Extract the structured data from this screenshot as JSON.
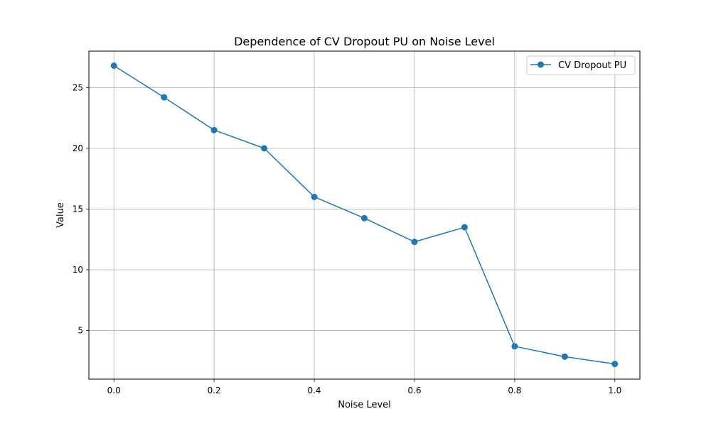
{
  "chart_data": {
    "type": "line",
    "title": "Dependence of CV Dropout PU on Noise Level",
    "xlabel": "Noise Level",
    "ylabel": "Value",
    "xlim": [
      -0.05,
      1.05
    ],
    "ylim": [
      1.0,
      28.0
    ],
    "xticks": [
      0.0,
      0.2,
      0.4,
      0.6,
      0.8,
      1.0
    ],
    "xtick_labels": [
      "0.0",
      "0.2",
      "0.4",
      "0.6",
      "0.8",
      "1.0"
    ],
    "yticks": [
      5,
      10,
      15,
      20,
      25
    ],
    "ytick_labels": [
      "5",
      "10",
      "15",
      "20",
      "25"
    ],
    "grid": true,
    "legend_position": "top-right",
    "x": [
      0.0,
      0.1,
      0.2,
      0.3,
      0.4,
      0.5,
      0.6,
      0.7,
      0.8,
      0.9,
      1.0
    ],
    "series": [
      {
        "name": "CV Dropout PU",
        "color": "#1f77b4",
        "marker": "circle",
        "values": [
          26.8,
          24.2,
          21.5,
          20.0,
          16.0,
          14.25,
          12.3,
          13.5,
          3.7,
          2.85,
          2.25
        ]
      }
    ]
  }
}
